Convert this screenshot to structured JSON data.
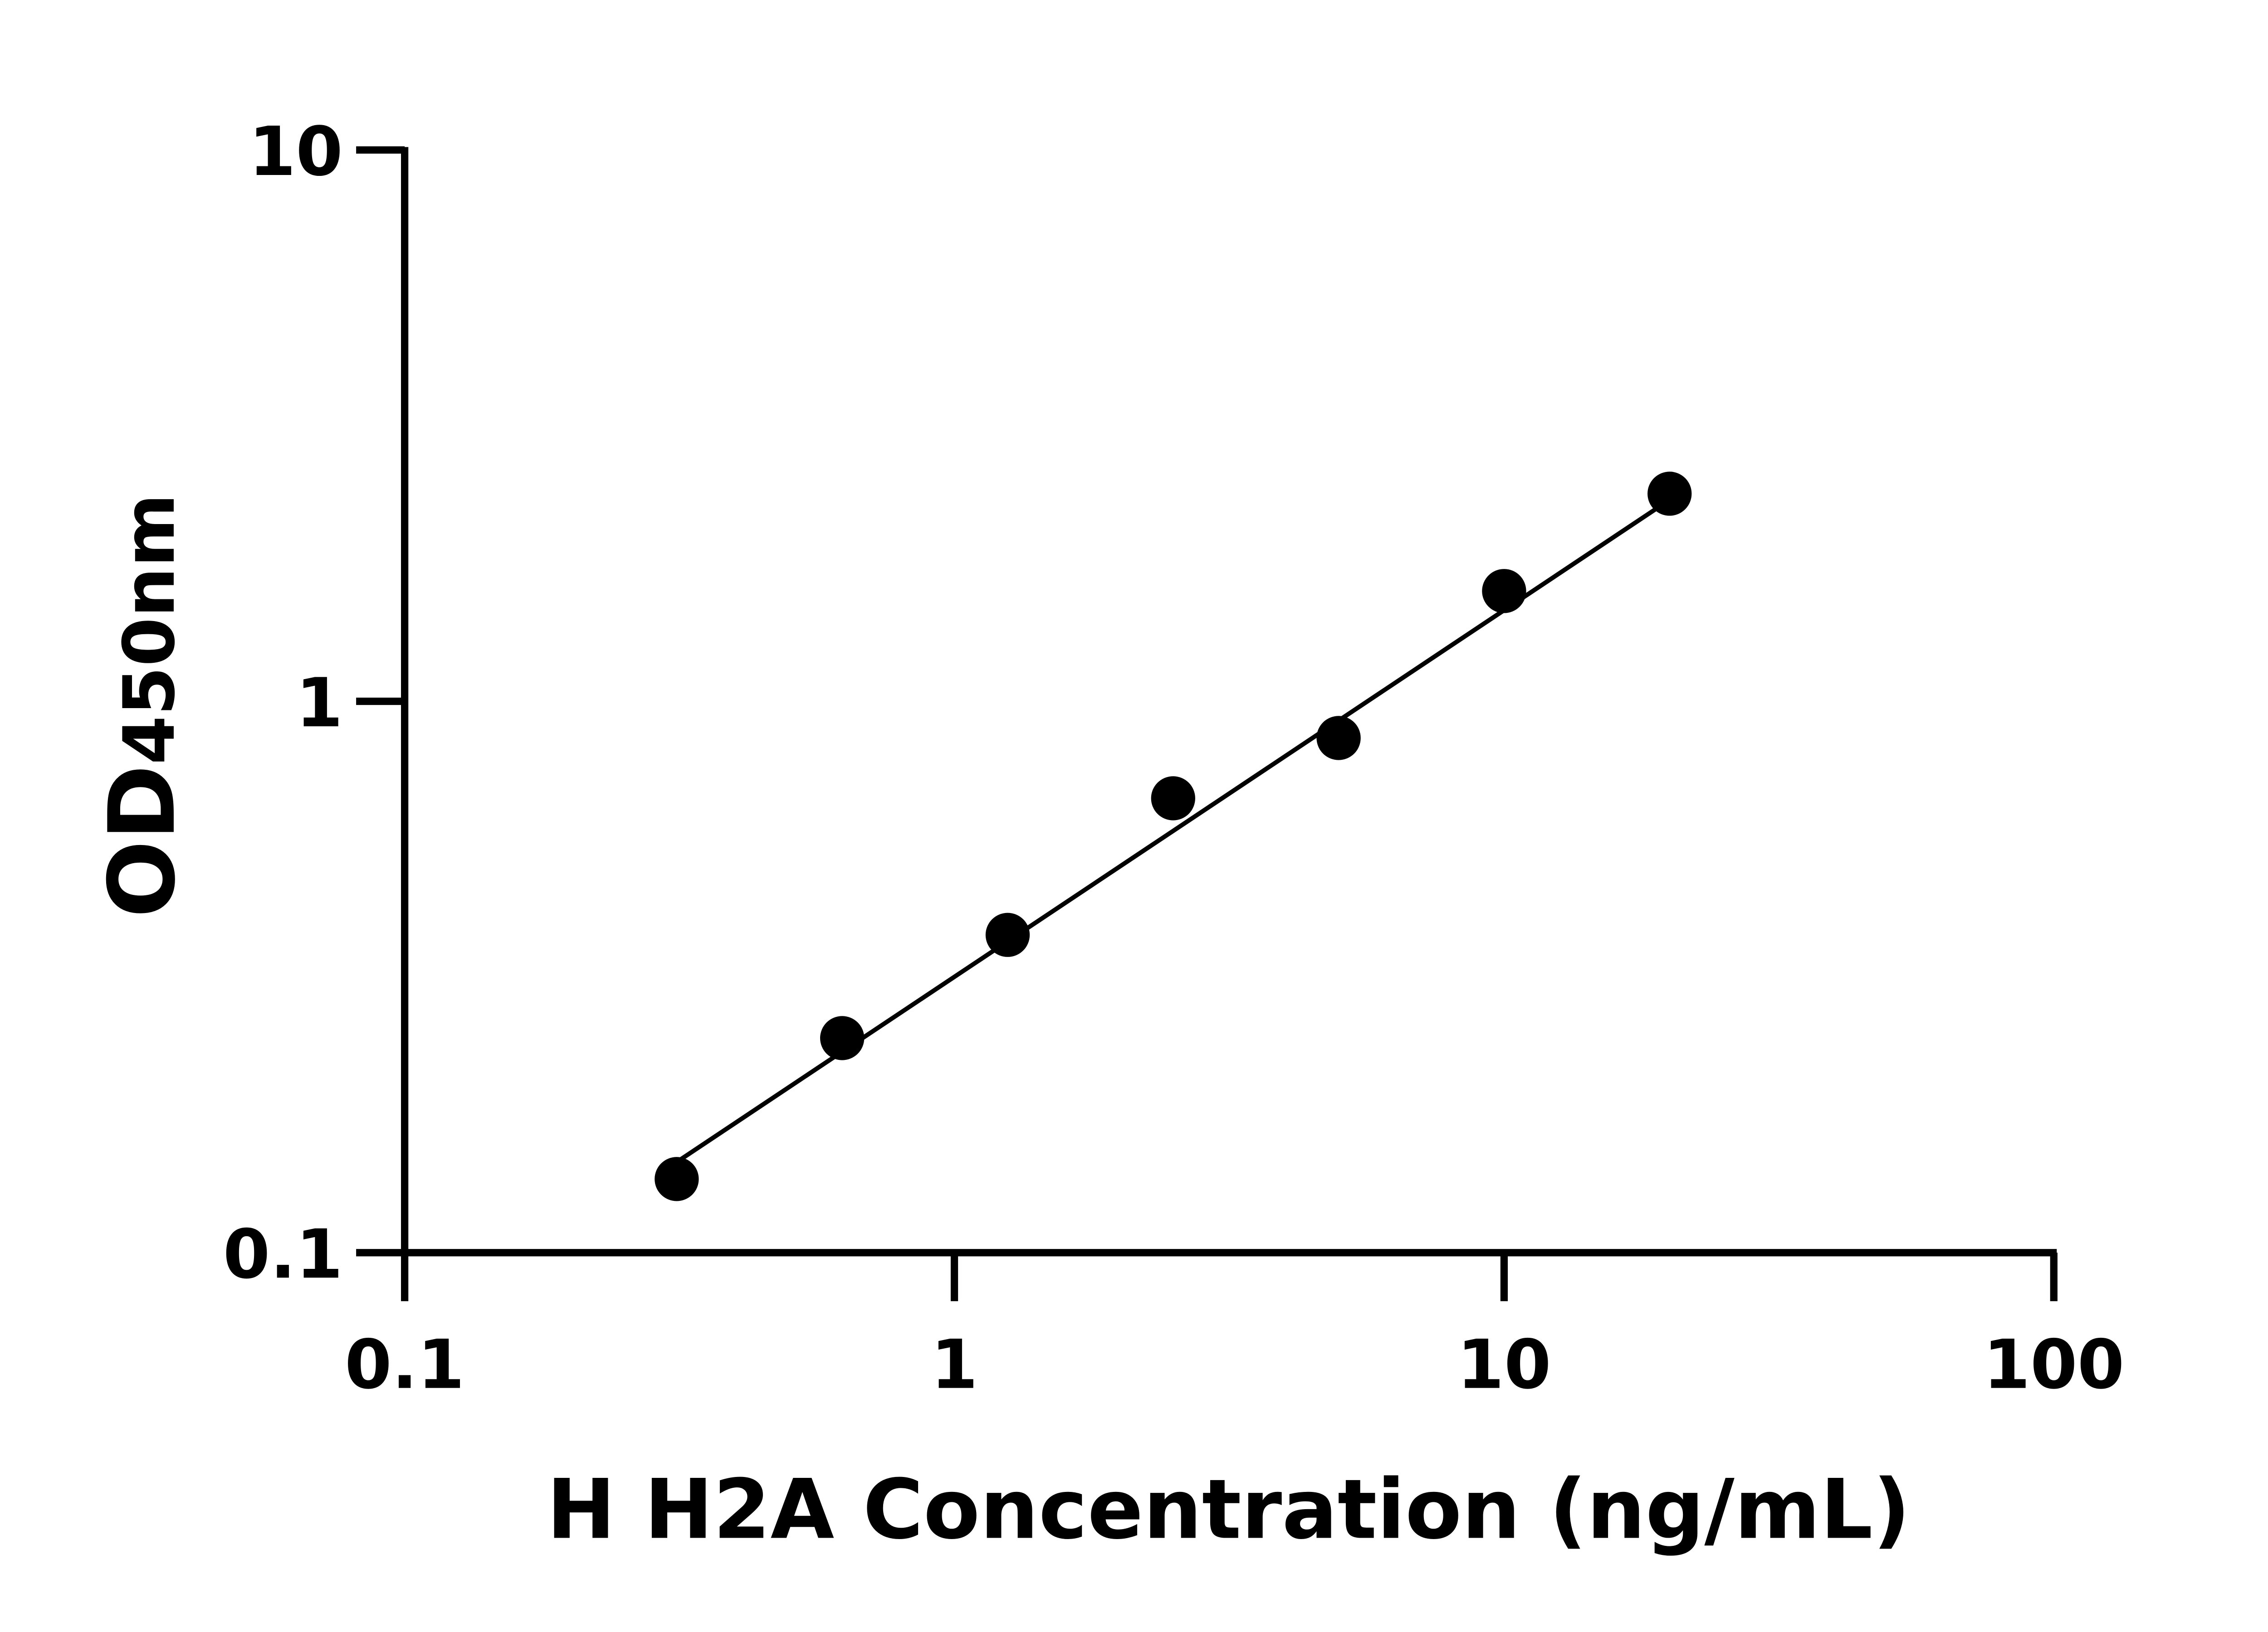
{
  "chart_data": {
    "type": "scatter",
    "title": "",
    "xlabel": "H H2A Concentration (ng/mL)",
    "ylabel_main": "OD",
    "ylabel_sub": "450nm",
    "x_scale": "log",
    "y_scale": "log",
    "xlim": [
      0.1,
      100
    ],
    "ylim": [
      0.1,
      10
    ],
    "x_ticks": [
      "0.1",
      "1",
      "10",
      "100"
    ],
    "y_ticks": [
      "0.1",
      "1",
      "10"
    ],
    "grid": false,
    "legend": "none",
    "series": [
      {
        "x": [
          0.3125,
          0.625,
          1.25,
          2.5,
          5,
          10,
          20
        ],
        "y": [
          0.136,
          0.245,
          0.377,
          0.667,
          0.858,
          1.585,
          2.38
        ],
        "marker": "circle",
        "color": "#000000"
      }
    ],
    "fit_line": {
      "x": [
        0.3125,
        20
      ],
      "y": [
        0.146,
        2.32
      ],
      "color": "#000000"
    }
  }
}
